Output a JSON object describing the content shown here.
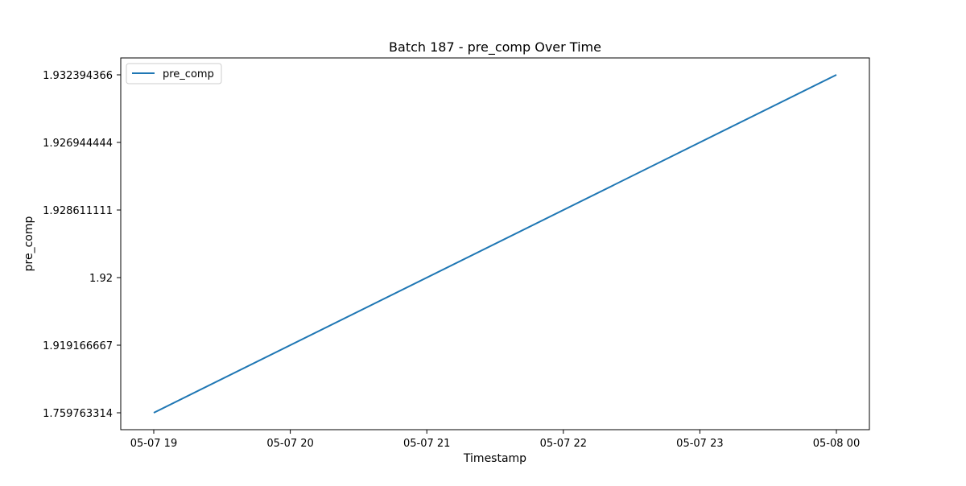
{
  "chart_data": {
    "type": "line",
    "title": "Batch 187 - pre_comp Over Time",
    "xlabel": "Timestamp",
    "ylabel": "pre_comp",
    "legend": {
      "placement": "top-left",
      "entries": [
        "pre_comp"
      ]
    },
    "grid": false,
    "x_ticks": [
      "05-07 19",
      "05-07 20",
      "05-07 21",
      "05-07 22",
      "05-07 23",
      "05-08 00"
    ],
    "y_axis_type": "categorical",
    "y_categories": [
      "1.759763314",
      "1.919166667",
      "1.92",
      "1.928611111",
      "1.926944444",
      "1.932394366"
    ],
    "series": [
      {
        "name": "pre_comp",
        "color": "#1f77b4",
        "x": [
          "05-07 19",
          "05-08 00"
        ],
        "y": [
          "1.759763314",
          "1.932394366"
        ]
      }
    ]
  }
}
